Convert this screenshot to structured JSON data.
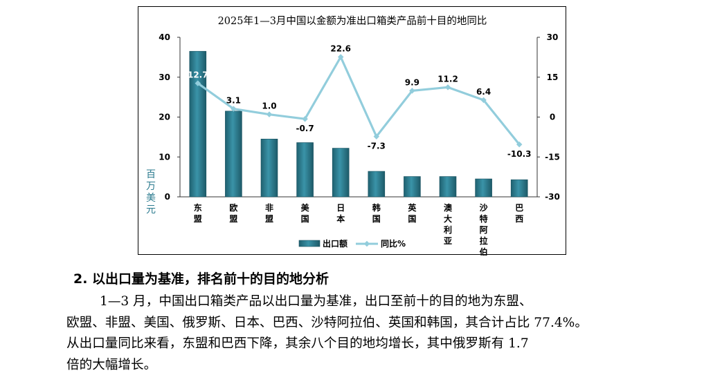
{
  "chart_data": {
    "type": "bar+line",
    "title": "2025年1—3月中国以金额为准出口箱类产品前十目的地同比",
    "categories": [
      [
        "东",
        "盟"
      ],
      [
        "欧",
        "盟"
      ],
      [
        "非",
        "盟"
      ],
      [
        "美",
        "国"
      ],
      [
        "日",
        "本"
      ],
      [
        "韩",
        "国"
      ],
      [
        "英",
        "国"
      ],
      [
        "澳",
        "大",
        "利",
        "亚"
      ],
      [
        "沙",
        "特",
        "阿",
        "拉",
        "伯"
      ],
      [
        "巴",
        "西"
      ]
    ],
    "category_names": [
      "东盟",
      "欧盟",
      "非盟",
      "美国",
      "日本",
      "韩国",
      "英国",
      "澳大利亚",
      "沙特阿拉伯",
      "巴西"
    ],
    "ylabel_left": [
      "百",
      "万",
      "美",
      "元"
    ],
    "ylim_left": [
      0,
      40
    ],
    "yticks_left": [
      "0",
      "10",
      "20",
      "30",
      "40"
    ],
    "ylim_right": [
      -30,
      30
    ],
    "yticks_right": [
      "-30",
      "-15",
      "0",
      "15",
      "30"
    ],
    "grid": false,
    "legend_position": "bottom",
    "series": [
      {
        "name": "出口额",
        "type": "bar",
        "color": "#2a7a8e",
        "values": [
          36.5,
          21.5,
          14.5,
          13.6,
          12.2,
          6.4,
          5.1,
          5.1,
          4.5,
          4.3
        ]
      },
      {
        "name": "同比%",
        "type": "line",
        "color": "#92cddc",
        "values": [
          12.7,
          3.1,
          1.0,
          -0.7,
          22.6,
          -7.3,
          9.9,
          11.2,
          6.4,
          -10.3
        ],
        "labels": [
          "12.7",
          "3.1",
          "1.0",
          "-0.7",
          "22.6",
          "-7.3",
          "9.9",
          "11.2",
          "6.4",
          "-10.3"
        ]
      }
    ]
  },
  "section": {
    "heading": "2. 以出口量为基准，排名前十的目的地分析",
    "paragraph_lines": [
      "1—3 月，中国出口箱类产品以出口量为基准，出口至前十的目的地为东盟、",
      "欧盟、非盟、美国、俄罗斯、日本、巴西、沙特阿拉伯、英国和韩国，其合计占比 77.4%。",
      "从出口量同比来看，东盟和巴西下降，其余八个目的地均增长，其中俄罗斯有 1.7",
      "倍的大幅增长。"
    ]
  }
}
